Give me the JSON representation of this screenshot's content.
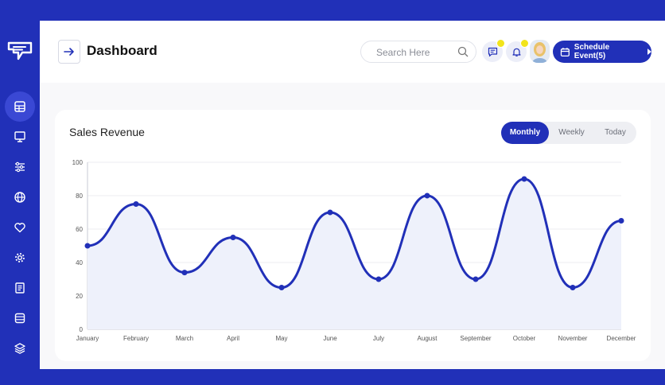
{
  "header": {
    "title": "Dashboard",
    "search_placeholder": "Search Here",
    "schedule_label": "Schedule Event(5)"
  },
  "sidebar": {
    "items": [
      {
        "icon": "dashboard-icon",
        "active": true
      },
      {
        "icon": "presentation-icon",
        "active": false
      },
      {
        "icon": "sliders-icon",
        "active": false
      },
      {
        "icon": "globe-icon",
        "active": false
      },
      {
        "icon": "heart-icon",
        "active": false
      },
      {
        "icon": "settings-icon",
        "active": false
      },
      {
        "icon": "document-icon",
        "active": false
      },
      {
        "icon": "database-icon",
        "active": false
      },
      {
        "icon": "layers-icon",
        "active": false
      }
    ]
  },
  "card": {
    "title": "Sales Revenue",
    "tabs": [
      {
        "label": "Monthly",
        "active": true
      },
      {
        "label": "Weekly",
        "active": false
      },
      {
        "label": "Today",
        "active": false
      }
    ]
  },
  "colors": {
    "accent": "#2130b8",
    "notification": "#f2e41b",
    "area_fill": "#eef1fb"
  },
  "chart_data": {
    "type": "area",
    "categories": [
      "January",
      "February",
      "March",
      "April",
      "May",
      "June",
      "July",
      "August",
      "September",
      "October",
      "November",
      "December"
    ],
    "values": [
      50,
      75,
      34,
      55,
      25,
      70,
      30,
      80,
      30,
      90,
      25,
      65
    ],
    "ylim": [
      0,
      100
    ],
    "yticks": [
      "0",
      "20",
      "40",
      "60",
      "80",
      "100"
    ],
    "grid": true,
    "smooth": true
  }
}
